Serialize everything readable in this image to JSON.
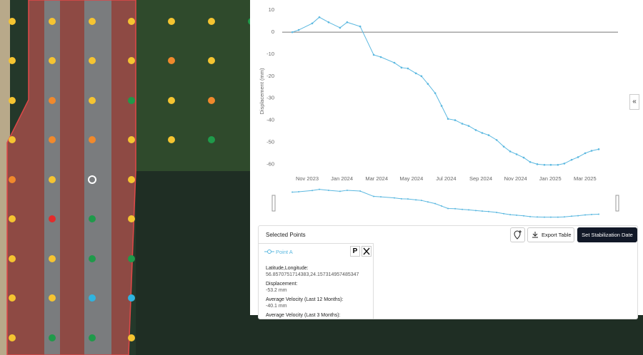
{
  "chart_data": {
    "type": "line",
    "y_label": "Displacement (mm)",
    "color": "#5bb8e0",
    "x": [
      -0.86,
      -0.49,
      0.29,
      0.7,
      1.23,
      1.89,
      2.3,
      3.05,
      3.83,
      4.24,
      5.02,
      5.43,
      5.8,
      6.26,
      6.58,
      6.95,
      7.37,
      7.74,
      8.11,
      8.52,
      8.93,
      9.3,
      9.71,
      10.08,
      10.45,
      10.91,
      11.32,
      11.69,
      12.06,
      12.47,
      12.84,
      13.25,
      13.66,
      14.03,
      14.44,
      14.81,
      15.23,
      15.6,
      16.01,
      16.38,
      16.79
    ],
    "values": [
      0,
      1,
      4,
      6.8,
      4.5,
      2,
      4.5,
      2.6,
      -10.3,
      -11.3,
      -13.9,
      -16.1,
      -16.5,
      -18.7,
      -20,
      -23.5,
      -27.7,
      -33.5,
      -39.4,
      -40,
      -41.6,
      -42.6,
      -44.5,
      -45.8,
      -46.8,
      -49,
      -52,
      -54.2,
      -55.5,
      -57,
      -59,
      -60,
      -60.3,
      -60.3,
      -60.3,
      -59.7,
      -58,
      -56.8,
      -55,
      -53.9,
      -53.2
    ],
    "xlim": [
      -1.44,
      17.9
    ],
    "ylim": [
      -62,
      13
    ],
    "yticks": [
      10,
      0,
      -10,
      -20,
      -30,
      -40,
      -50,
      -60
    ],
    "xticks": [
      {
        "value": 0,
        "label": "Nov 2023"
      },
      {
        "value": 2,
        "label": "Jan 2024"
      },
      {
        "value": 4,
        "label": "Mar 2024"
      },
      {
        "value": 6,
        "label": "May 2024"
      },
      {
        "value": 8,
        "label": "Jul 2024"
      },
      {
        "value": 10,
        "label": "Sep 2024"
      },
      {
        "value": 12,
        "label": "Nov 2024"
      },
      {
        "value": 14,
        "label": "Jan 2025"
      },
      {
        "value": 16,
        "label": "Mar 2025"
      }
    ]
  },
  "collapse_button": "«",
  "selected_points": {
    "title": "Selected Points",
    "export_button": "Export Table",
    "stabilization_button": "Set Stabilization Date",
    "point": {
      "name": "Point A",
      "pin": "P"
    },
    "details": [
      {
        "label": "Latitude,Longitude:",
        "value": "56.8570751714383,24.157314957485347"
      },
      {
        "label": "Displacement:",
        "value": "-53.2 mm"
      },
      {
        "label": "Average Velocity (Last 12 Months):",
        "value": "-40.1 mm"
      },
      {
        "label": "Average Velocity (Last 3 Months):"
      }
    ]
  }
}
